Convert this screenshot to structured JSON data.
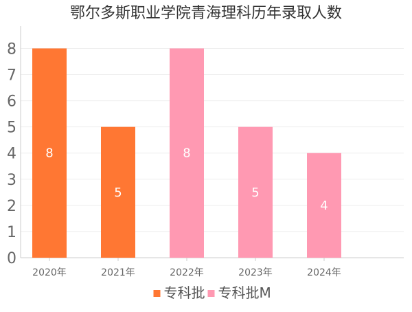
{
  "chart_data": {
    "type": "bar",
    "title": "鄂尔多斯职业学院青海理科历年录取人数",
    "xlabel": "",
    "ylabel": "",
    "categories": [
      "2020年",
      "2021年",
      "2022年",
      "2023年",
      "2024年"
    ],
    "values": [
      8,
      5,
      8,
      5,
      4
    ],
    "bar_series": [
      "专科批",
      "专科批",
      "专科批M",
      "专科批M",
      "专科批M"
    ],
    "series": [
      {
        "name": "专科批",
        "color": "#ff7733",
        "values": [
          8,
          5,
          null,
          null,
          null
        ]
      },
      {
        "name": "专科批M",
        "color": "#ff99b2",
        "values": [
          null,
          null,
          8,
          5,
          4
        ]
      }
    ],
    "y_ticks": [
      "0",
      "1",
      "2",
      "3",
      "4",
      "5",
      "6",
      "7",
      "8"
    ],
    "ylim": [
      0,
      8.8
    ],
    "grid": true,
    "legend": "bottom-center",
    "data_labels": [
      "8",
      "5",
      "8",
      "5",
      "4"
    ]
  }
}
